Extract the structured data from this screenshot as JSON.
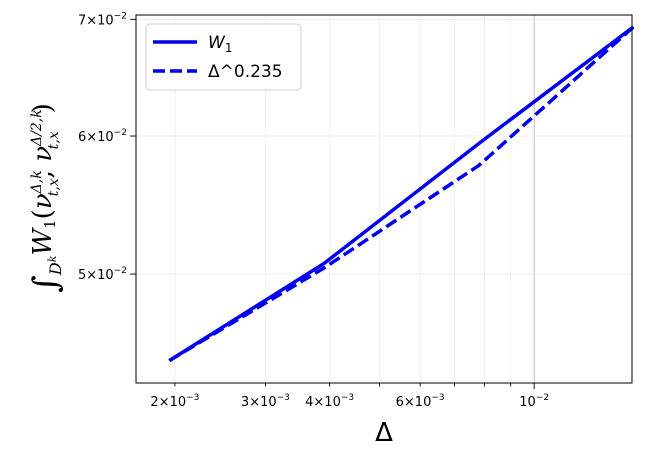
{
  "chart_data": {
    "type": "line",
    "xscale": "log",
    "yscale": "log",
    "xlim": [
      0.00168,
      0.0155
    ],
    "ylim": [
      0.0433,
      0.0704
    ],
    "grid": true,
    "legend_position": "top-left",
    "xlabel": "Δ",
    "ylabel": "∫_{D^k} W_1(ν_{t,x}^{Δ,k}, ν_{t,x}^{Δ/2,k})",
    "x_ticks": [
      {
        "value": 0.002,
        "mantissa": "2",
        "exp": "−3"
      },
      {
        "value": 0.003,
        "mantissa": "3",
        "exp": "−3"
      },
      {
        "value": 0.004,
        "mantissa": "4",
        "exp": "−3"
      },
      {
        "value": 0.006,
        "mantissa": "6",
        "exp": "−3"
      },
      {
        "value": 0.01,
        "mantissa": "",
        "exp": "−2"
      }
    ],
    "y_ticks": [
      {
        "value": 0.05,
        "mantissa": "5",
        "exp": "−2"
      },
      {
        "value": 0.06,
        "mantissa": "6",
        "exp": "−2"
      },
      {
        "value": 0.07,
        "mantissa": "7",
        "exp": "−2"
      }
    ],
    "series": [
      {
        "name": "W_1",
        "color": "#0000ee",
        "dash": "solid",
        "x": [
          0.00195,
          0.0039,
          0.0078,
          0.0156
        ],
        "y": [
          0.0446,
          0.0507,
          0.0594,
          0.0693
        ]
      },
      {
        "name": "Δ^0.235",
        "color": "#0000ee",
        "dash": "dashed",
        "x": [
          0.00195,
          0.0039,
          0.0078,
          0.0156
        ],
        "y": [
          0.0446,
          0.0504,
          0.0577,
          0.0693
        ]
      }
    ]
  }
}
